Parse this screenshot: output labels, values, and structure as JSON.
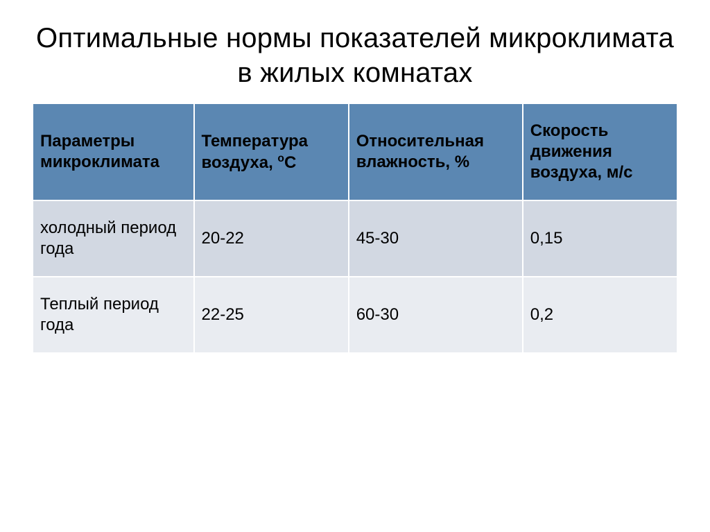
{
  "title": "Оптимальные нормы показателей микроклимата в жилых комнатах",
  "table": {
    "type": "table",
    "header_bg": "#5b87b2",
    "header_fg": "#000000",
    "row_odd_bg": "#d2d8e2",
    "row_even_bg": "#e9ecf1",
    "border_color": "#ffffff",
    "cell_fontsize": 24,
    "header_fontsize": 24,
    "columns": [
      {
        "label": "Параметры микроклимата",
        "width_pct": 25
      },
      {
        "label": "Температура воздуха, ",
        "width_pct": 24,
        "suffix_html": "<sup>o</sup>C"
      },
      {
        "label": "Относительная влажность, %",
        "width_pct": 27
      },
      {
        "label": "Скорость движения воздуха, м/с",
        "width_pct": 24
      }
    ],
    "rows": [
      {
        "cells": [
          "холодный период года",
          "20-22",
          "45-30",
          "0,15"
        ]
      },
      {
        "cells": [
          "Теплый период года",
          "22-25",
          "60-30",
          "0,2"
        ]
      }
    ]
  },
  "colors": {
    "background": "#ffffff",
    "title_color": "#000000"
  },
  "title_fontsize": 40
}
